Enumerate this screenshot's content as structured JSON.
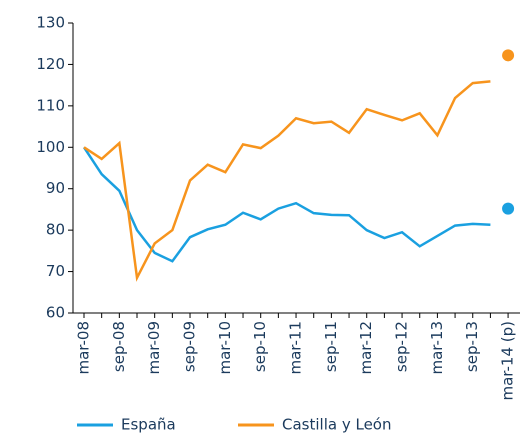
{
  "chart_data": {
    "type": "line",
    "categories": [
      "mar-08",
      null,
      "sep-08",
      null,
      "mar-09",
      null,
      "sep-09",
      null,
      "mar-10",
      null,
      "sep-10",
      null,
      "mar-11",
      null,
      "sep-11",
      null,
      "mar-12",
      null,
      "sep-12",
      null,
      "mar-13",
      null,
      "sep-13",
      null,
      "mar-14 (p)"
    ],
    "series": [
      {
        "name": "España",
        "color": "#1aa0e0",
        "values": [
          100,
          93.5,
          89.5,
          80,
          74.5,
          72.5,
          78.3,
          80.2,
          81.3,
          84.2,
          82.6,
          85.2,
          86.5,
          84.1,
          83.7,
          83.6,
          80,
          78.1,
          79.5,
          76.1,
          78.6,
          81.1,
          81.5,
          81.3,
          85.2
        ]
      },
      {
        "name": "Castilla y León",
        "color": "#f7941d",
        "values": [
          100,
          97.2,
          101,
          68.5,
          76.8,
          80,
          92,
          95.8,
          94,
          100.7,
          99.8,
          102.8,
          107,
          105.8,
          106.2,
          103.5,
          109.2,
          107.8,
          106.5,
          108.2,
          102.9,
          111.9,
          115.5,
          115.9,
          122.2
        ]
      }
    ],
    "separate_last_point": true,
    "ylim": [
      60,
      130
    ],
    "yticks": [
      60,
      70,
      80,
      90,
      100,
      110,
      120,
      130
    ],
    "grid": false,
    "legend": "bottom"
  }
}
